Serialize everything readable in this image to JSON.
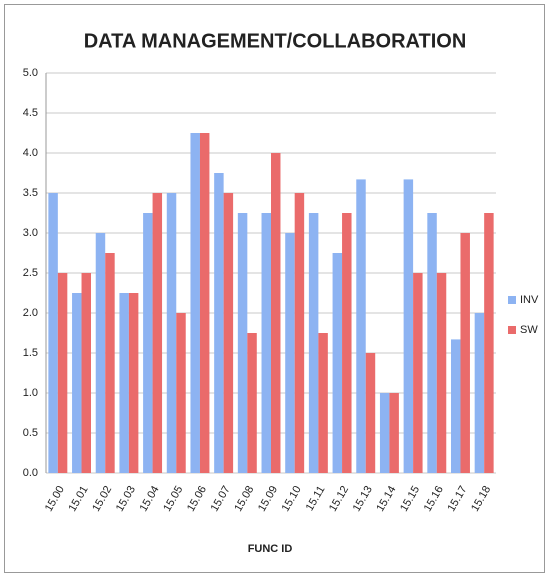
{
  "chart_data": {
    "type": "bar",
    "title": "DATA MANAGEMENT/COLLABORATION",
    "x_label": "FUNC ID",
    "categories": [
      "15.00",
      "15.01",
      "15.02",
      "15.03",
      "15.04",
      "15.05",
      "15.06",
      "15.07",
      "15.08",
      "15.09",
      "15.10",
      "15.11",
      "15.12",
      "15.13",
      "15.14",
      "15.15",
      "15.16",
      "15.17",
      "15.18"
    ],
    "series": [
      {
        "name": "INV",
        "color": "#8db3f2",
        "values": [
          3.5,
          2.25,
          3.0,
          2.25,
          3.25,
          3.5,
          4.25,
          3.75,
          3.25,
          3.25,
          3.0,
          3.25,
          2.75,
          3.67,
          1.0,
          3.67,
          3.25,
          1.67,
          2.0
        ]
      },
      {
        "name": "SW",
        "color": "#ea6b6b",
        "values": [
          2.5,
          2.5,
          2.75,
          2.25,
          3.5,
          2.0,
          4.25,
          3.5,
          1.75,
          4.0,
          3.5,
          1.75,
          3.25,
          1.5,
          1.0,
          2.5,
          2.5,
          3.0,
          3.25
        ]
      }
    ],
    "ylim": [
      0,
      5
    ],
    "yticks": [
      {
        "value": 0,
        "label": "0.0"
      },
      0.5,
      {
        "value": 1,
        "label": "1.0"
      },
      1.5,
      {
        "value": 2,
        "label": "2.0"
      },
      2.5,
      {
        "value": 3,
        "label": "3.0"
      },
      3.5,
      {
        "value": 4,
        "label": "4.0"
      },
      4.5,
      {
        "value": 5,
        "label": "5.0"
      }
    ],
    "grid": true,
    "legend": "right"
  }
}
